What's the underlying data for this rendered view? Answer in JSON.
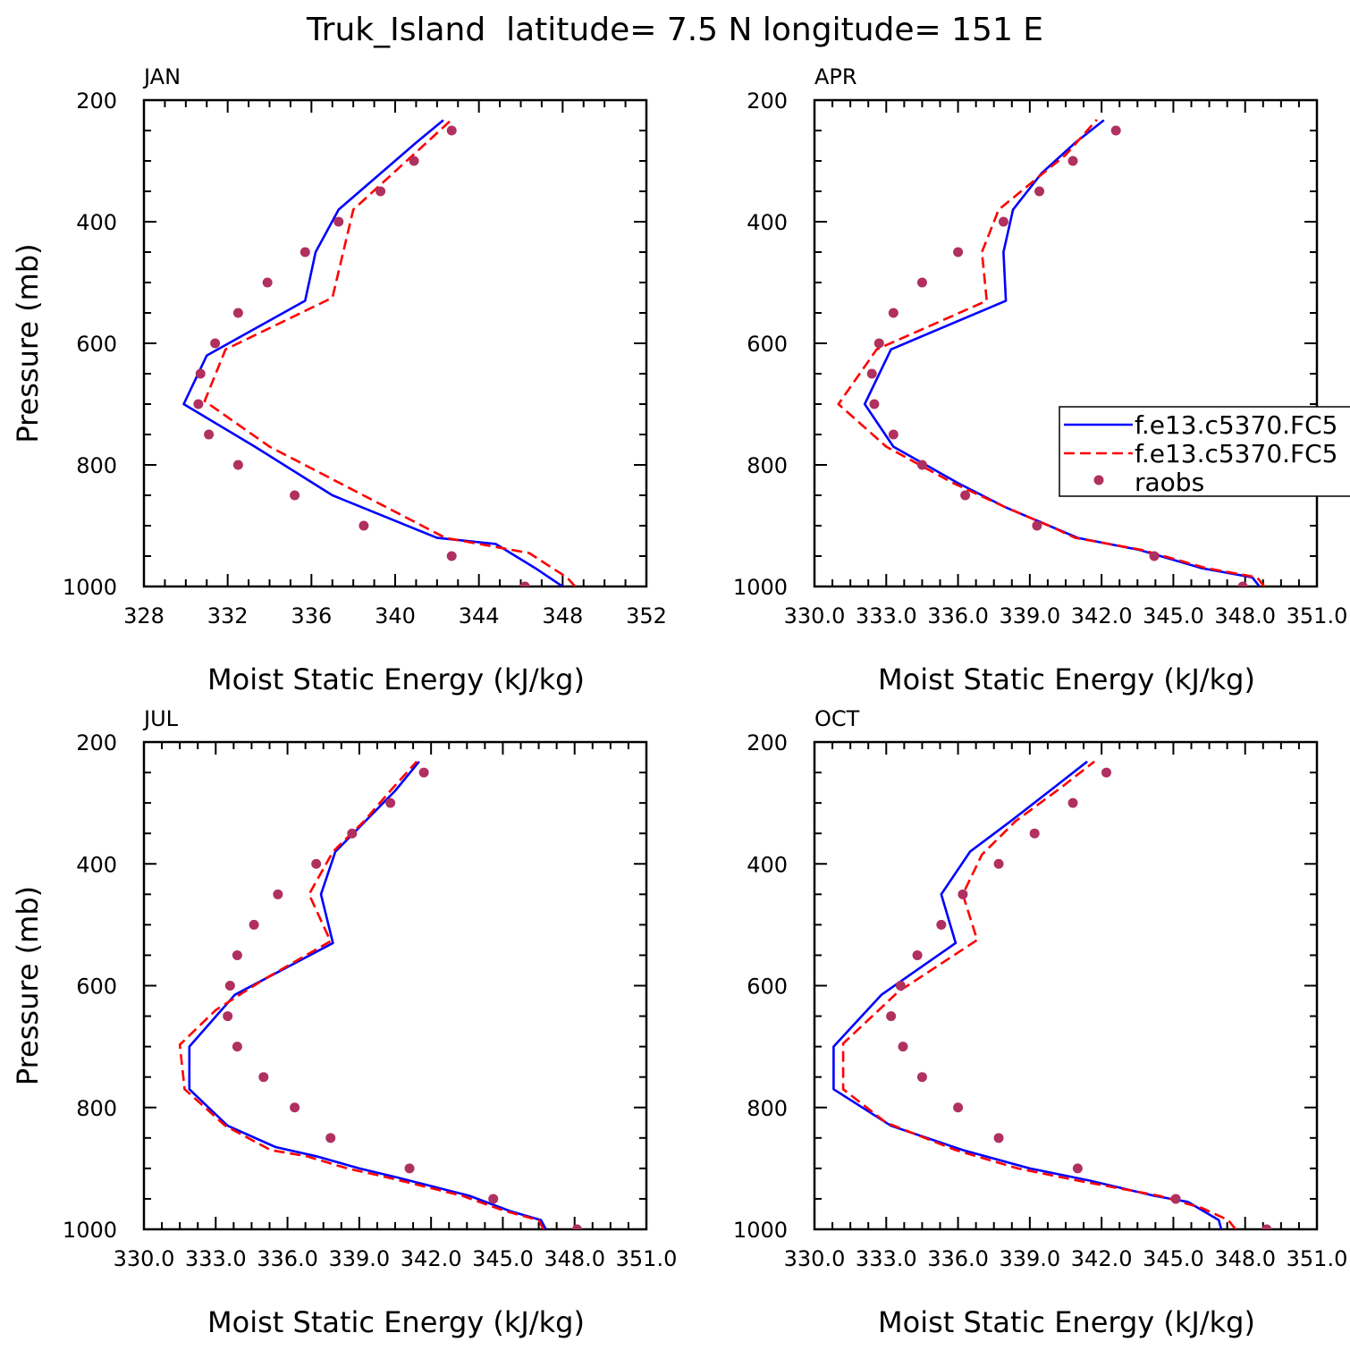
{
  "figure_title": "Truk_Island  latitude= 7.5 N longitude= 151 E",
  "colors": {
    "model1": "#0000ff",
    "model2": "#ff0000",
    "raobs": "#b03060",
    "axis": "#000000"
  },
  "chart_data": [
    {
      "type": "line",
      "panel_label": "JAN",
      "xlabel": "Moist Static Energy (kJ/kg)",
      "ylabel": "Pressure (mb)",
      "xlim": [
        328,
        352
      ],
      "ylim": [
        1000,
        200
      ],
      "x_ticks": [
        328,
        332,
        336,
        340,
        344,
        348,
        352
      ],
      "x_tick_labels": [
        "328",
        "332",
        "336",
        "340",
        "344",
        "348",
        "352"
      ],
      "y_ticks": [
        200,
        400,
        600,
        800,
        1000
      ],
      "y_tick_labels": [
        "200",
        "400",
        "600",
        "800",
        "1000"
      ],
      "show_legend": false,
      "series": [
        {
          "name": "f.e13.c5370.FC5",
          "style": "solid",
          "points": [
            [
              348.0,
              1000
            ],
            [
              346.7,
              970
            ],
            [
              344.8,
              930
            ],
            [
              342.0,
              920
            ],
            [
              337.0,
              850
            ],
            [
              333.3,
              770
            ],
            [
              329.9,
              700
            ],
            [
              331.0,
              620
            ],
            [
              335.7,
              530
            ],
            [
              336.2,
              450
            ],
            [
              337.3,
              380
            ],
            [
              341.0,
              270
            ],
            [
              342.3,
              233
            ]
          ]
        },
        {
          "name": "f.e13.c5370.FC5",
          "style": "dashed",
          "points": [
            [
              348.6,
              1000
            ],
            [
              348.2,
              985
            ],
            [
              346.4,
              945
            ],
            [
              342.4,
              920
            ],
            [
              334.0,
              770
            ],
            [
              330.9,
              695
            ],
            [
              331.9,
              610
            ],
            [
              337.0,
              525
            ],
            [
              338.0,
              380
            ],
            [
              341.5,
              270
            ],
            [
              342.7,
              232
            ]
          ]
        },
        {
          "name": "raobs",
          "style": "dots",
          "points": [
            [
              346.2,
              1000
            ],
            [
              342.7,
              950
            ],
            [
              338.5,
              900
            ],
            [
              335.2,
              850
            ],
            [
              332.5,
              800
            ],
            [
              331.1,
              750
            ],
            [
              330.6,
              700
            ],
            [
              330.7,
              650
            ],
            [
              331.4,
              600
            ],
            [
              332.5,
              550
            ],
            [
              333.9,
              500
            ],
            [
              335.7,
              450
            ],
            [
              337.3,
              400
            ],
            [
              339.3,
              350
            ],
            [
              340.9,
              300
            ],
            [
              342.7,
              250
            ]
          ]
        }
      ]
    },
    {
      "type": "line",
      "panel_label": "APR",
      "xlabel": "Moist Static Energy (kJ/kg)",
      "ylabel": "",
      "xlim": [
        330.0,
        351.0
      ],
      "ylim": [
        1000,
        200
      ],
      "x_ticks": [
        330.0,
        333.0,
        336.0,
        339.0,
        342.0,
        345.0,
        348.0,
        351.0
      ],
      "x_tick_labels": [
        "330.0",
        "333.0",
        "336.0",
        "339.0",
        "342.0",
        "345.0",
        "348.0",
        "351.0"
      ],
      "y_ticks": [
        200,
        400,
        600,
        800,
        1000
      ],
      "y_tick_labels": [
        "200",
        "400",
        "600",
        "800",
        "1000"
      ],
      "show_legend": true,
      "legend_labels": [
        "f.e13.c5370.FC5",
        "f.e13.c5370.FC5",
        "raobs"
      ],
      "series": [
        {
          "name": "f.e13.c5370.FC5",
          "style": "solid",
          "points": [
            [
              348.6,
              1000
            ],
            [
              348.3,
              985
            ],
            [
              346.2,
              970
            ],
            [
              343.6,
              940
            ],
            [
              341.0,
              920
            ],
            [
              339.8,
              900
            ],
            [
              338.0,
              870
            ],
            [
              336.0,
              830
            ],
            [
              333.3,
              770
            ],
            [
              332.1,
              700
            ],
            [
              333.2,
              610
            ],
            [
              338.0,
              530
            ],
            [
              337.9,
              450
            ],
            [
              338.3,
              380
            ],
            [
              339.5,
              320
            ],
            [
              340.9,
              270
            ],
            [
              342.1,
              233
            ]
          ]
        },
        {
          "name": "f.e13.c5370.FC5",
          "style": "dashed",
          "points": [
            [
              348.8,
              1000
            ],
            [
              348.5,
              985
            ],
            [
              346.4,
              970
            ],
            [
              343.7,
              940
            ],
            [
              340.9,
              920
            ],
            [
              339.8,
              900
            ],
            [
              338.0,
              870
            ],
            [
              335.8,
              830
            ],
            [
              333.0,
              770
            ],
            [
              331.0,
              700
            ],
            [
              332.6,
              610
            ],
            [
              337.2,
              530
            ],
            [
              337.0,
              450
            ],
            [
              337.7,
              380
            ],
            [
              340.5,
              290
            ],
            [
              341.8,
              232
            ]
          ]
        },
        {
          "name": "raobs",
          "style": "dots",
          "points": [
            [
              347.9,
              1000
            ],
            [
              344.2,
              950
            ],
            [
              339.3,
              900
            ],
            [
              336.3,
              850
            ],
            [
              334.5,
              800
            ],
            [
              333.3,
              750
            ],
            [
              332.5,
              700
            ],
            [
              332.4,
              650
            ],
            [
              332.7,
              600
            ],
            [
              333.3,
              550
            ],
            [
              334.5,
              500
            ],
            [
              336.0,
              450
            ],
            [
              337.9,
              400
            ],
            [
              339.4,
              350
            ],
            [
              340.8,
              300
            ],
            [
              342.6,
              250
            ]
          ]
        }
      ]
    },
    {
      "type": "line",
      "panel_label": "JUL",
      "xlabel": "Moist Static Energy (kJ/kg)",
      "ylabel": "Pressure (mb)",
      "xlim": [
        330.0,
        351.0
      ],
      "ylim": [
        1000,
        200
      ],
      "x_ticks": [
        330.0,
        333.0,
        336.0,
        339.0,
        342.0,
        345.0,
        348.0,
        351.0
      ],
      "x_tick_labels": [
        "330.0",
        "333.0",
        "336.0",
        "339.0",
        "342.0",
        "345.0",
        "348.0",
        "351.0"
      ],
      "y_ticks": [
        200,
        400,
        600,
        800,
        1000
      ],
      "y_tick_labels": [
        "200",
        "400",
        "600",
        "800",
        "1000"
      ],
      "show_legend": false,
      "series": [
        {
          "name": "f.e13.c5370.FC5",
          "style": "solid",
          "points": [
            [
              346.8,
              1000
            ],
            [
              346.6,
              985
            ],
            [
              345.3,
              970
            ],
            [
              343.6,
              945
            ],
            [
              340.6,
              915
            ],
            [
              339.0,
              900
            ],
            [
              337.2,
              880
            ],
            [
              335.5,
              865
            ],
            [
              333.5,
              830
            ],
            [
              331.9,
              770
            ],
            [
              331.9,
              700
            ],
            [
              333.8,
              615
            ],
            [
              337.9,
              530
            ],
            [
              337.4,
              450
            ],
            [
              338.0,
              380
            ],
            [
              339.0,
              340
            ],
            [
              340.5,
              280
            ],
            [
              341.5,
              232
            ]
          ]
        },
        {
          "name": "f.e13.c5370.FC5",
          "style": "dashed",
          "points": [
            [
              346.7,
              1000
            ],
            [
              346.5,
              985
            ],
            [
              345.1,
              970
            ],
            [
              343.3,
              945
            ],
            [
              340.2,
              915
            ],
            [
              338.5,
              900
            ],
            [
              336.8,
              880
            ],
            [
              335.3,
              870
            ],
            [
              333.4,
              830
            ],
            [
              331.7,
              770
            ],
            [
              331.5,
              697
            ],
            [
              333.0,
              640
            ],
            [
              335.0,
              590
            ],
            [
              337.8,
              527
            ],
            [
              336.9,
              450
            ],
            [
              337.9,
              380
            ],
            [
              339.2,
              330
            ],
            [
              340.3,
              280
            ],
            [
              341.4,
              232
            ]
          ]
        },
        {
          "name": "raobs",
          "style": "dots",
          "points": [
            [
              348.1,
              1000
            ],
            [
              344.6,
              950
            ],
            [
              341.1,
              900
            ],
            [
              337.8,
              850
            ],
            [
              336.3,
              800
            ],
            [
              335.0,
              750
            ],
            [
              333.9,
              700
            ],
            [
              333.5,
              650
            ],
            [
              333.6,
              600
            ],
            [
              333.9,
              550
            ],
            [
              334.6,
              500
            ],
            [
              335.6,
              450
            ],
            [
              337.2,
              400
            ],
            [
              338.7,
              350
            ],
            [
              340.3,
              300
            ],
            [
              341.7,
              250
            ]
          ]
        }
      ]
    },
    {
      "type": "line",
      "panel_label": "OCT",
      "xlabel": "Moist Static Energy (kJ/kg)",
      "ylabel": "",
      "xlim": [
        330.0,
        351.0
      ],
      "ylim": [
        1000,
        200
      ],
      "x_ticks": [
        330.0,
        333.0,
        336.0,
        339.0,
        342.0,
        345.0,
        348.0,
        351.0
      ],
      "x_tick_labels": [
        "330.0",
        "333.0",
        "336.0",
        "339.0",
        "342.0",
        "345.0",
        "348.0",
        "351.0"
      ],
      "y_ticks": [
        200,
        400,
        600,
        800,
        1000
      ],
      "y_tick_labels": [
        "200",
        "400",
        "600",
        "800",
        "1000"
      ],
      "show_legend": false,
      "series": [
        {
          "name": "f.e13.c5370.FC5",
          "style": "solid",
          "points": [
            [
              347.0,
              1000
            ],
            [
              346.9,
              985
            ],
            [
              345.6,
              955
            ],
            [
              344.2,
              945
            ],
            [
              341.5,
              920
            ],
            [
              339.0,
              900
            ],
            [
              336.2,
              870
            ],
            [
              333.2,
              830
            ],
            [
              330.8,
              770
            ],
            [
              330.8,
              700
            ],
            [
              332.8,
              615
            ],
            [
              335.9,
              530
            ],
            [
              335.3,
              450
            ],
            [
              336.5,
              380
            ],
            [
              338.2,
              330
            ],
            [
              340.0,
              275
            ],
            [
              341.4,
              232
            ]
          ]
        },
        {
          "name": "f.e13.c5370.FC5",
          "style": "dashed",
          "points": [
            [
              347.6,
              1000
            ],
            [
              347.3,
              985
            ],
            [
              346.2,
              965
            ],
            [
              344.4,
              945
            ],
            [
              341.0,
              920
            ],
            [
              338.5,
              900
            ],
            [
              335.9,
              870
            ],
            [
              333.0,
              825
            ],
            [
              331.2,
              770
            ],
            [
              331.2,
              695
            ],
            [
              333.5,
              610
            ],
            [
              336.8,
              525
            ],
            [
              336.2,
              450
            ],
            [
              337.0,
              385
            ],
            [
              338.4,
              330
            ],
            [
              340.3,
              275
            ],
            [
              341.7,
              232
            ]
          ]
        },
        {
          "name": "raobs",
          "style": "dots",
          "points": [
            [
              348.9,
              1000
            ],
            [
              345.1,
              950
            ],
            [
              341.0,
              900
            ],
            [
              337.7,
              850
            ],
            [
              336.0,
              800
            ],
            [
              334.5,
              750
            ],
            [
              333.7,
              700
            ],
            [
              333.2,
              650
            ],
            [
              333.6,
              600
            ],
            [
              334.3,
              550
            ],
            [
              335.3,
              500
            ],
            [
              336.2,
              450
            ],
            [
              337.7,
              400
            ],
            [
              339.2,
              350
            ],
            [
              340.8,
              300
            ],
            [
              342.2,
              250
            ]
          ]
        }
      ]
    }
  ]
}
